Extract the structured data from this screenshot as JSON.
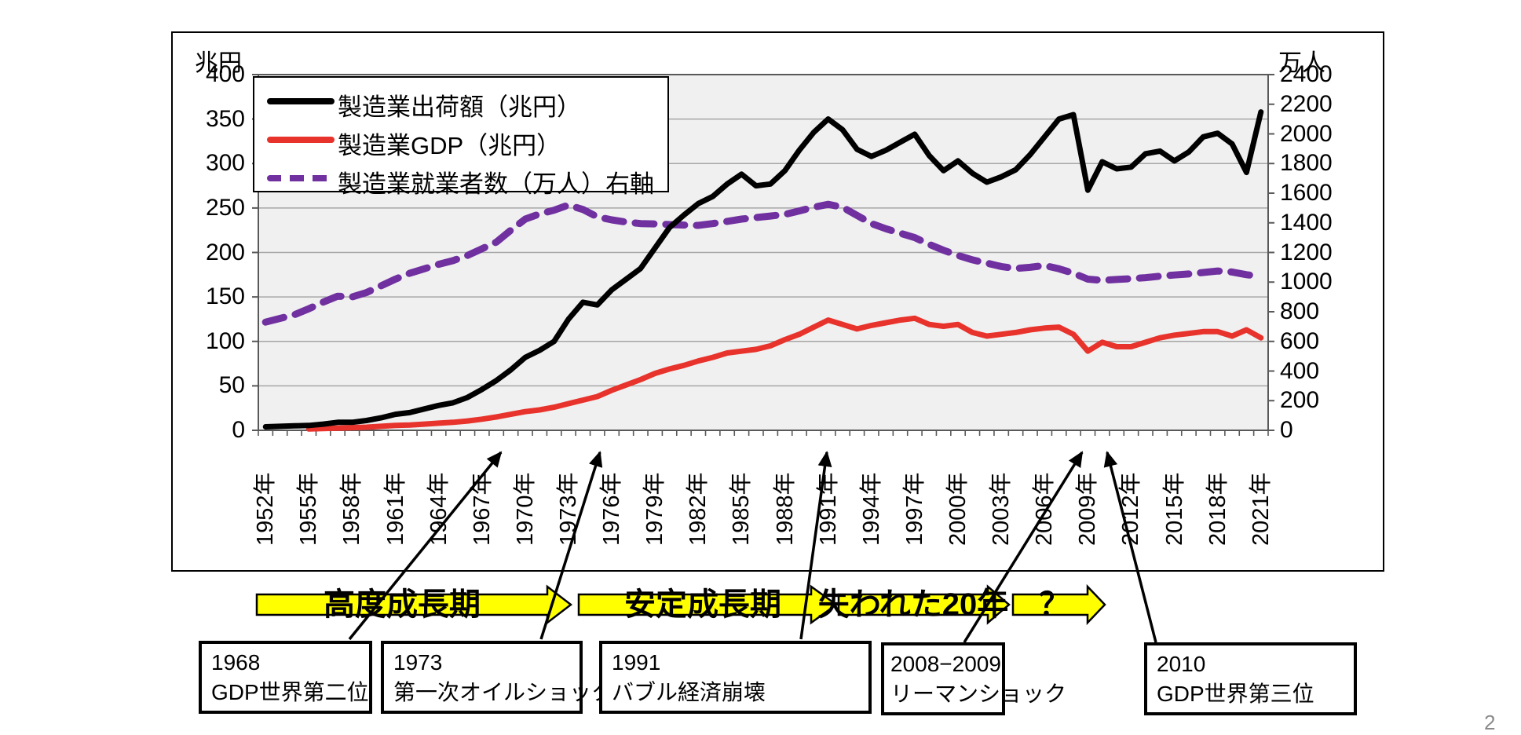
{
  "page": {
    "page_number": "2"
  },
  "chart": {
    "left_axis_title": "兆円",
    "right_axis_title": "万人",
    "left_axis_ticks": [
      0,
      50,
      100,
      150,
      200,
      250,
      300,
      350,
      400
    ],
    "right_axis_ticks": [
      0,
      200,
      400,
      600,
      800,
      1000,
      1200,
      1400,
      1600,
      1800,
      2000,
      2200,
      2400
    ],
    "x_tick_labels": [
      "1952年",
      "1955年",
      "1958年",
      "1961年",
      "1964年",
      "1967年",
      "1970年",
      "1973年",
      "1976年",
      "1979年",
      "1982年",
      "1985年",
      "1988年",
      "1991年",
      "1994年",
      "1997年",
      "2000年",
      "2003年",
      "2006年",
      "2009年",
      "2012年",
      "2015年",
      "2018年",
      "2021年"
    ],
    "colors": {
      "shipments": "#000000",
      "gdp": "#e8332c",
      "employment": "#7030a0",
      "plot_background": "#f0f0f0",
      "gridline": "#a6a6a6",
      "plot_border": "#595959",
      "timeline_arrow_fill": "#ffff00",
      "timeline_arrow_border": "#000000"
    }
  },
  "chart_data": {
    "type": "line",
    "title": "",
    "xlabel": "",
    "left_ylabel": "兆円",
    "right_ylabel": "万人",
    "left_ylim": [
      0,
      400
    ],
    "right_ylim": [
      0,
      2400
    ],
    "grid": "horizontal",
    "legend_position": "top-left-inside",
    "x": [
      1952,
      1953,
      1954,
      1955,
      1956,
      1957,
      1958,
      1959,
      1960,
      1961,
      1962,
      1963,
      1964,
      1965,
      1966,
      1967,
      1968,
      1969,
      1970,
      1971,
      1972,
      1973,
      1974,
      1975,
      1976,
      1977,
      1978,
      1979,
      1980,
      1981,
      1982,
      1983,
      1984,
      1985,
      1986,
      1987,
      1988,
      1989,
      1990,
      1991,
      1992,
      1993,
      1994,
      1995,
      1996,
      1997,
      1998,
      1999,
      2000,
      2001,
      2002,
      2003,
      2004,
      2005,
      2006,
      2007,
      2008,
      2009,
      2010,
      2011,
      2012,
      2013,
      2014,
      2015,
      2016,
      2017,
      2018,
      2019,
      2020,
      2021
    ],
    "series": [
      {
        "name": "製造業出荷額（兆円）",
        "axis": "left",
        "color": "#000000",
        "style": "solid",
        "values": [
          4,
          4.5,
          5,
          5.5,
          7,
          9,
          9,
          11,
          14,
          18,
          20,
          24,
          28,
          31,
          37,
          46,
          56,
          68,
          82,
          90,
          100,
          125,
          144,
          141,
          158,
          170,
          182,
          205,
          228,
          242,
          255,
          263,
          277,
          288,
          275,
          277,
          292,
          315,
          335,
          350,
          338,
          316,
          308,
          315,
          324,
          333,
          309,
          292,
          303,
          289,
          279,
          285,
          293,
          310,
          330,
          350,
          355,
          270,
          302,
          294,
          296,
          311,
          314,
          303,
          313,
          330,
          334,
          322,
          290,
          358
        ]
      },
      {
        "name": "製造業GDP（兆円）",
        "axis": "left",
        "color": "#e8332c",
        "style": "solid",
        "values": [
          null,
          null,
          null,
          1.5,
          2,
          2.5,
          3,
          3.5,
          4.5,
          5.5,
          6,
          7,
          8,
          9,
          10.5,
          12.5,
          15,
          18,
          21,
          23,
          26,
          30,
          34,
          38,
          45,
          51,
          57,
          64,
          69,
          73,
          78,
          82,
          87,
          89,
          91,
          95,
          102,
          108,
          116,
          124,
          119,
          114,
          118,
          121,
          124,
          126,
          119,
          117,
          119,
          110,
          106,
          108,
          110,
          113,
          115,
          116,
          108,
          89,
          99,
          94,
          94,
          99,
          104,
          107,
          109,
          111,
          111,
          106,
          113,
          104
        ]
      },
      {
        "name": "製造業就業者数（万人）右軸",
        "axis": "right",
        "color": "#7030a0",
        "style": "dashed",
        "values": [
          730,
          755,
          780,
          820,
          865,
          905,
          900,
          930,
          975,
          1020,
          1060,
          1090,
          1120,
          1145,
          1180,
          1225,
          1270,
          1350,
          1425,
          1460,
          1485,
          1520,
          1490,
          1440,
          1420,
          1405,
          1395,
          1393,
          1388,
          1385,
          1383,
          1395,
          1410,
          1425,
          1436,
          1446,
          1457,
          1480,
          1505,
          1525,
          1505,
          1450,
          1395,
          1360,
          1330,
          1300,
          1255,
          1215,
          1180,
          1150,
          1128,
          1105,
          1092,
          1100,
          1112,
          1090,
          1060,
          1020,
          1012,
          1018,
          1023,
          1030,
          1040,
          1048,
          1055,
          1065,
          1075,
          1068,
          1050,
          1038
        ]
      }
    ]
  },
  "timeline": {
    "periods": [
      {
        "label": "高度成長期"
      },
      {
        "label": "安定成長期"
      },
      {
        "label": "失われた20年"
      },
      {
        "label": "？"
      }
    ]
  },
  "events": [
    {
      "line1": "1968",
      "line2": "GDP世界第二位"
    },
    {
      "line1": "1973",
      "line2": "第一次オイルショック"
    },
    {
      "line1": "1991",
      "line2": "バブル経済崩壊"
    },
    {
      "line1": "2008−2009",
      "line2": "リーマンショック"
    },
    {
      "line1": "2010",
      "line2": "GDP世界第三位"
    }
  ]
}
